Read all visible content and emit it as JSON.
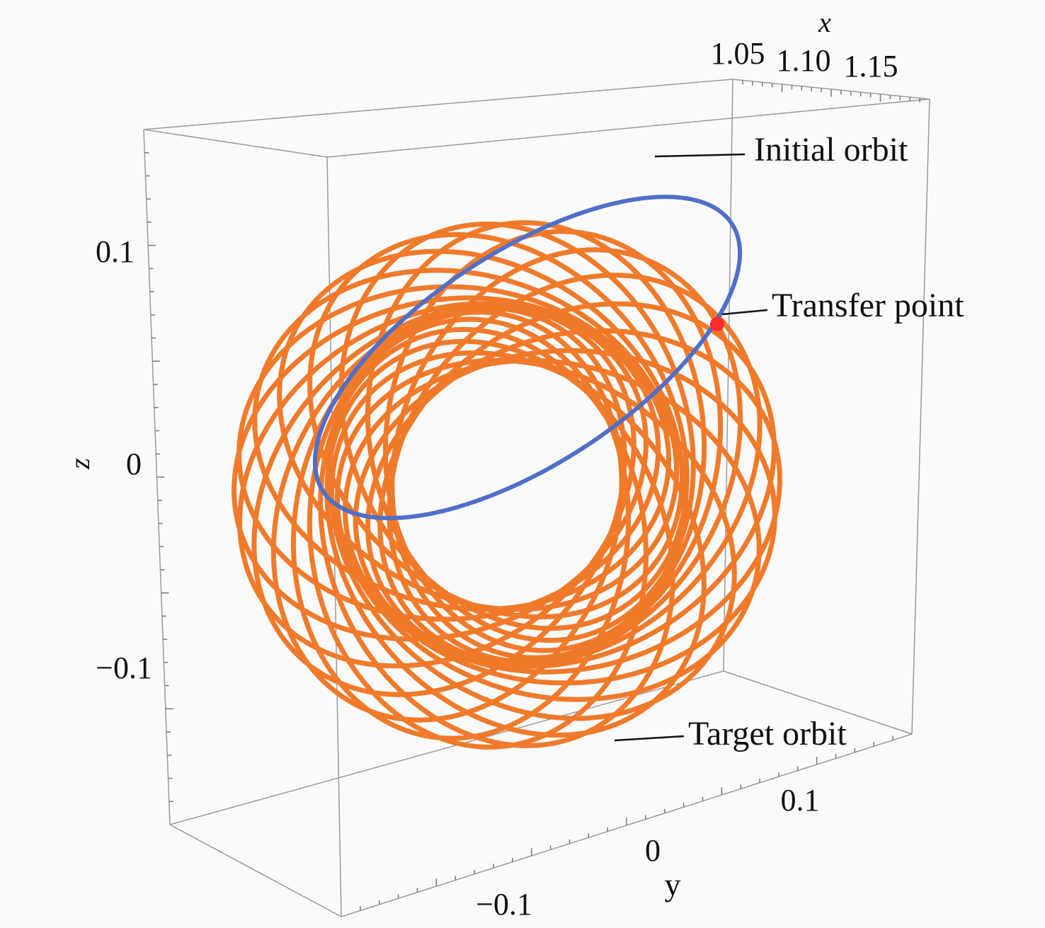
{
  "chart_data": {
    "type": "line3d",
    "title": "",
    "axes": {
      "x": {
        "label": "x",
        "ticks": [
          "1.05",
          "1.10",
          "1.15"
        ]
      },
      "y": {
        "label": "y",
        "ticks": [
          "−0.1",
          "0",
          "0.1"
        ]
      },
      "z": {
        "label": "z",
        "ticks": [
          "0.1",
          "0",
          "−0.1"
        ]
      }
    },
    "box": true,
    "grid": false,
    "series": [
      {
        "name": "Initial orbit",
        "color": "#4f6fc8",
        "shape": "closed periodic orbit (ellipse-like)"
      },
      {
        "name": "Target orbit",
        "color": "#f07a2a",
        "shape": "quasi-periodic torus orbit"
      },
      {
        "name": "Transfer point",
        "color": "#ff2a2a",
        "shape": "point"
      }
    ],
    "annotations": [
      "Initial orbit",
      "Transfer point",
      "Target orbit"
    ]
  }
}
